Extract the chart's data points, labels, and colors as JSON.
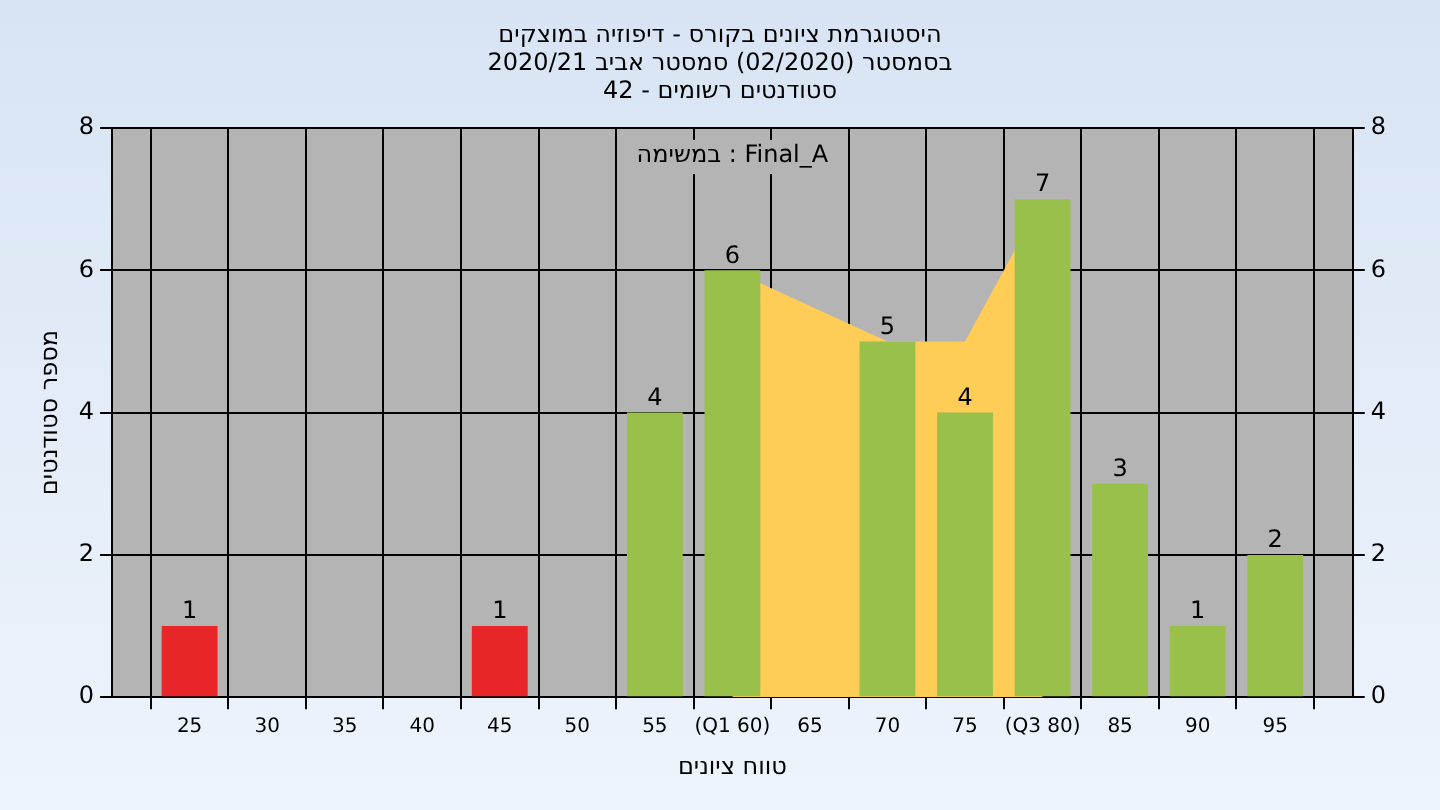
{
  "chart_data": {
    "type": "bar",
    "title": "היסטוגרמת ציונים בקורס - דיפוזיה במוצקים",
    "subtitle": "בסמסטר  (02/2020)  סמסטר אביב 2020/21\nסטודנטים רשומים - 42",
    "xlabel": "טווח ציונים",
    "ylabel": "מספר סטודנטים",
    "annotations": [
      "במשימה : Final_A"
    ],
    "series": [
      {
        "type": "area",
        "x": [
          60,
          70,
          75,
          80
        ],
        "values": [
          6,
          5,
          5,
          7
        ],
        "color": "#ffcc55"
      },
      {
        "x": [
          25,
          45,
          55,
          60,
          70,
          75,
          80,
          85,
          90,
          95
        ],
        "values": [
          1,
          1,
          4,
          6,
          5,
          4,
          7,
          3,
          1,
          2
        ],
        "colors": [
          "#e8262a",
          "#e8262a",
          "#98c04a",
          "#98c04a",
          "#98c04a",
          "#98c04a",
          "#98c04a",
          "#98c04a",
          "#98c04a",
          "#98c04a"
        ],
        "value_labels": [
          "1",
          "1",
          "4",
          "6",
          "5",
          "4",
          "7",
          "3",
          "1",
          "2"
        ]
      }
    ],
    "xlim": [
      20,
      100
    ],
    "xticks": [
      25,
      30,
      35,
      40,
      45,
      50,
      55,
      {
        "value": 60,
        "label": "(Q1 60)"
      },
      65,
      70,
      75,
      {
        "value": 80,
        "label": "(Q3 80)"
      },
      85,
      90,
      95
    ],
    "ylim": [
      0,
      8
    ],
    "yticks": [
      0,
      2,
      4,
      6,
      8
    ],
    "y2lim": [
      0,
      8
    ],
    "y2ticks": [
      0,
      2,
      4,
      6,
      8
    ],
    "grid": true,
    "legend": false
  }
}
